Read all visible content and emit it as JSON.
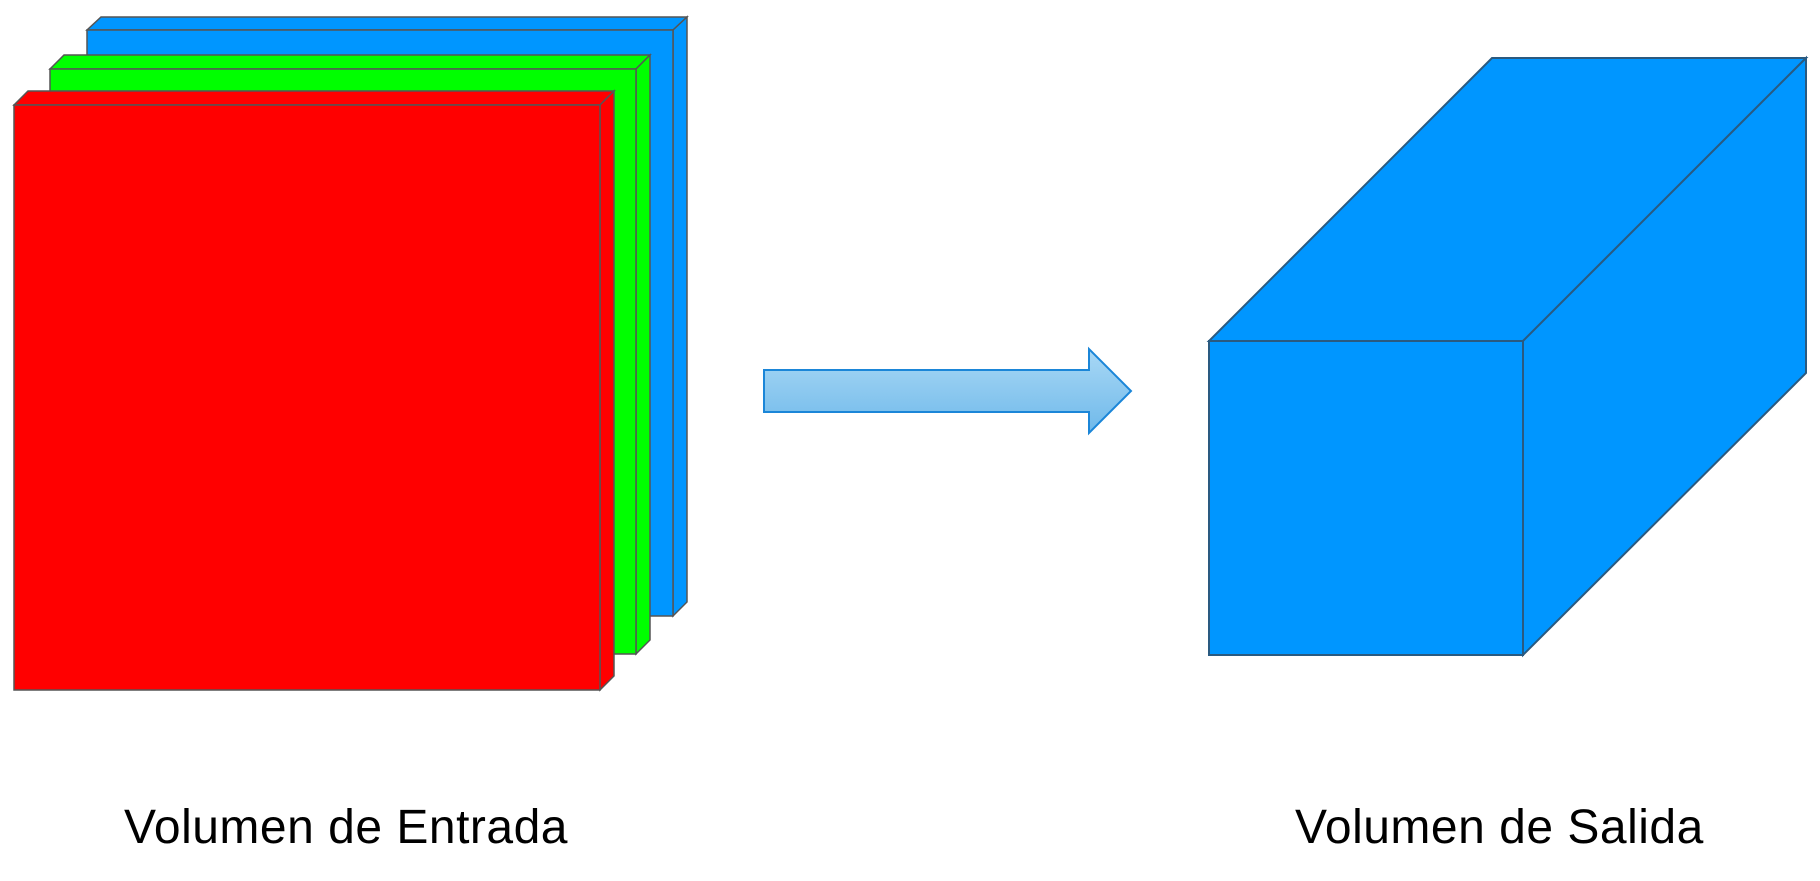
{
  "captions": {
    "input": "Volumen de Entrada",
    "output": "Volumen de Salida"
  },
  "colors": {
    "red_channel": "#ff0000",
    "green_channel": "#00ff00",
    "blue_channel": "#0096ff",
    "output_volume": "#0096ff",
    "arrow": "#8ccbf2",
    "edge": "#555555"
  }
}
